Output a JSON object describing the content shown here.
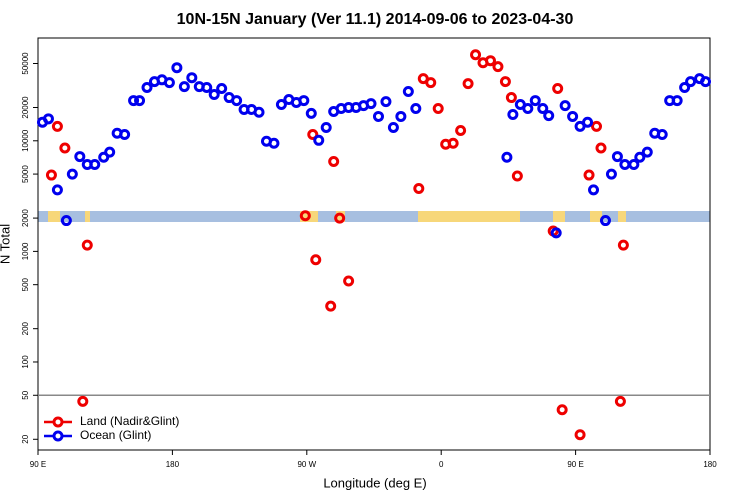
{
  "chart_data": {
    "type": "scatter",
    "title": "10N-15N January (Ver 11.1)   2014-09-06 to 2023-04-30",
    "xlabel": "Longitude (deg E)",
    "ylabel": "N Total",
    "xlim": [
      90,
      540
    ],
    "xticks": [
      {
        "value": 90,
        "label": "90 E"
      },
      180,
      {
        "value": 270,
        "label": "90 W"
      },
      {
        "value": 360,
        "label": "0"
      },
      {
        "value": 450,
        "label": "90 E"
      },
      {
        "value": 540,
        "label": "180"
      }
    ],
    "ylim": [
      16,
      85000
    ],
    "log_y": true,
    "yticks": [
      20,
      50,
      100,
      200,
      500,
      1000,
      2000,
      5000,
      10000,
      20000,
      50000
    ],
    "reference_line": 50,
    "legend": "bottom-left",
    "series": [
      {
        "name": "Land (Nadir&Glint)",
        "color": "#ee0000",
        "x": [
          103,
          99,
          108,
          120,
          123,
          269,
          274,
          276,
          286,
          288,
          292,
          298,
          345,
          348,
          353,
          358,
          363,
          368,
          373,
          378,
          383,
          388,
          393,
          398,
          403,
          407,
          411,
          435,
          438,
          441,
          453,
          459,
          464,
          467,
          480,
          482
        ],
        "values": [
          13500,
          4900,
          8600,
          44,
          1140,
          2100,
          11400,
          840,
          320,
          6500,
          2000,
          540,
          3700,
          36500,
          33600,
          19600,
          9300,
          9500,
          12400,
          32900,
          60000,
          50800,
          53000,
          46800,
          34300,
          24600,
          4800,
          1530,
          29700,
          37,
          22,
          4900,
          13500,
          8600,
          44,
          1140
        ]
      },
      {
        "name": "Ocean (Glint)",
        "color": "#0000ee",
        "x": [
          93,
          97,
          103,
          109,
          113,
          118,
          123,
          128,
          134,
          138,
          143,
          148,
          154,
          158,
          163,
          168,
          173,
          178,
          183,
          188,
          193,
          198,
          203,
          208,
          213,
          218,
          223,
          228,
          233,
          238,
          243,
          248,
          253,
          258,
          263,
          268,
          273,
          278,
          283,
          288,
          293,
          298,
          303,
          308,
          313,
          318,
          323,
          328,
          333,
          338,
          343,
          404,
          408,
          413,
          418,
          423,
          428,
          432,
          437,
          443,
          448,
          453,
          458,
          462,
          470,
          474,
          478,
          483,
          489,
          493,
          498,
          503,
          508,
          513,
          518,
          523,
          527,
          533,
          537
        ],
        "values": [
          14700,
          15800,
          3600,
          1900,
          5000,
          7200,
          6100,
          6100,
          7100,
          7900,
          11700,
          11400,
          23100,
          23100,
          30300,
          34300,
          35600,
          33600,
          45800,
          30900,
          37200,
          30900,
          30300,
          26200,
          29700,
          24600,
          23100,
          19200,
          19200,
          18100,
          9900,
          9500,
          21300,
          23600,
          22200,
          23100,
          17700,
          10100,
          13200,
          18400,
          19600,
          20000,
          20000,
          20800,
          21700,
          16600,
          22600,
          13200,
          16600,
          27900,
          19600,
          7100,
          17300,
          21300,
          19600,
          23100,
          19600,
          16900,
          1470,
          20800,
          16600,
          13500,
          14700,
          3600,
          1900,
          5000,
          7200,
          6100,
          6100,
          7100,
          7900,
          11700,
          11400,
          23100,
          23100,
          30300,
          34300,
          36500,
          34300
        ]
      }
    ]
  }
}
